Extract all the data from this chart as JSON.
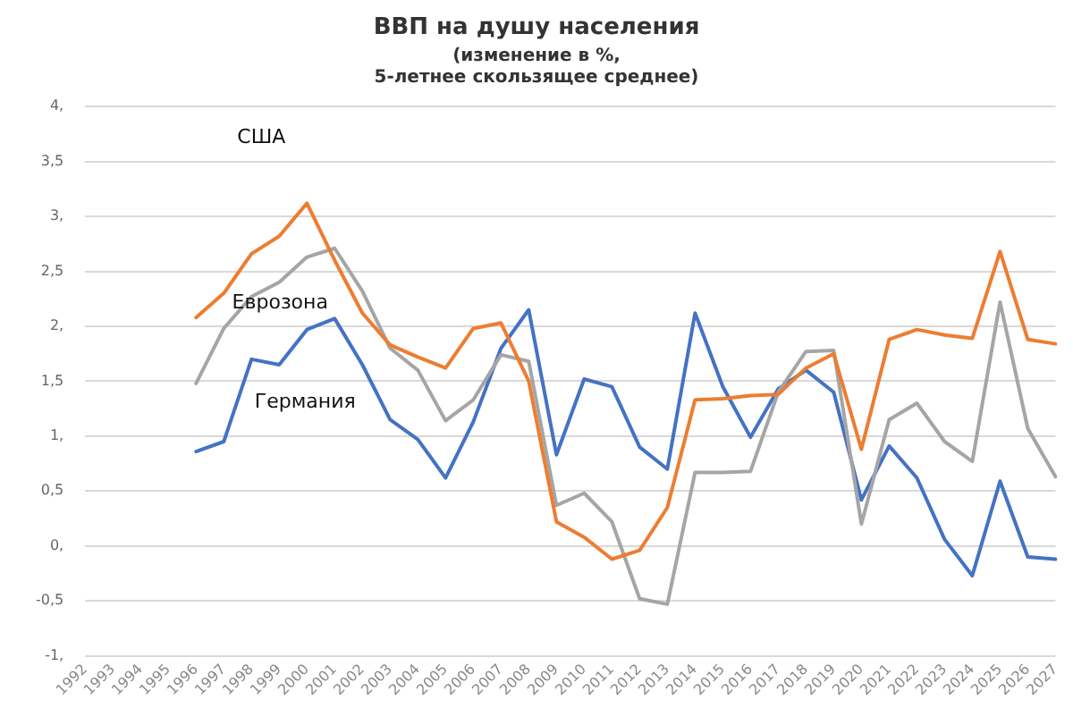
{
  "chart_data": {
    "type": "line",
    "title": "ВВП на душу населения",
    "subtitle": "(изменение в %,\n5-летнее скользящее среднее)",
    "categories": [
      "1992",
      "1993",
      "1994",
      "1995",
      "1996",
      "1997",
      "1998",
      "1999",
      "2000",
      "2001",
      "2002",
      "2003",
      "2004",
      "2005",
      "2006",
      "2007",
      "2008",
      "2009",
      "2010",
      "2011",
      "2012",
      "2013",
      "2014",
      "2015",
      "2016",
      "2017",
      "2018",
      "2019",
      "2020",
      "2021",
      "2022",
      "2023",
      "2024",
      "2025",
      "2026",
      "2027"
    ],
    "series": [
      {
        "name": "США",
        "color": "#ed7d31",
        "values": [
          null,
          null,
          null,
          null,
          2.08,
          2.3,
          2.66,
          2.82,
          3.12,
          2.6,
          2.12,
          1.83,
          1.72,
          1.62,
          1.98,
          2.03,
          1.5,
          0.22,
          0.08,
          -0.12,
          -0.04,
          0.35,
          1.33,
          1.34,
          1.37,
          1.38,
          1.62,
          1.75,
          0.88,
          1.88,
          1.97,
          1.92,
          1.89,
          2.68,
          1.88,
          1.84
        ]
      },
      {
        "name": "Еврозона",
        "color": "#a5a5a5",
        "values": [
          null,
          null,
          null,
          null,
          1.48,
          1.98,
          2.27,
          2.4,
          2.63,
          2.71,
          2.32,
          1.8,
          1.6,
          1.14,
          1.33,
          1.74,
          1.68,
          0.37,
          0.48,
          0.22,
          -0.48,
          -0.53,
          0.67,
          0.67,
          0.68,
          1.4,
          1.77,
          1.78,
          0.2,
          1.15,
          1.3,
          0.95,
          0.77,
          2.22,
          1.07,
          0.63
        ]
      },
      {
        "name": "Германия",
        "color": "#4472c4",
        "values": [
          null,
          null,
          null,
          null,
          0.86,
          0.95,
          1.7,
          1.65,
          1.97,
          2.07,
          1.65,
          1.15,
          0.97,
          0.62,
          1.13,
          1.8,
          2.15,
          0.83,
          1.52,
          1.45,
          0.9,
          0.7,
          2.12,
          1.45,
          0.99,
          1.43,
          1.6,
          1.4,
          0.42,
          0.91,
          0.62,
          0.06,
          -0.27,
          0.59,
          -0.1,
          -0.12
        ]
      }
    ],
    "ylim": [
      -1,
      4
    ],
    "yticks": [
      {
        "value": -1,
        "label": "-1,"
      },
      {
        "value": -0.5,
        "label": "-0,5"
      },
      {
        "value": 0,
        "label": "0,"
      },
      {
        "value": 0.5,
        "label": "0,5"
      },
      {
        "value": 1,
        "label": "1,"
      },
      {
        "value": 1.5,
        "label": "1,5"
      },
      {
        "value": 2,
        "label": "2,"
      },
      {
        "value": 2.5,
        "label": "2,5"
      },
      {
        "value": 3,
        "label": "3,"
      },
      {
        "value": 3.5,
        "label": "3,5"
      },
      {
        "value": 4,
        "label": "4,"
      }
    ],
    "grid": "y",
    "legend": false,
    "marker": "none",
    "line_style": "solid"
  }
}
